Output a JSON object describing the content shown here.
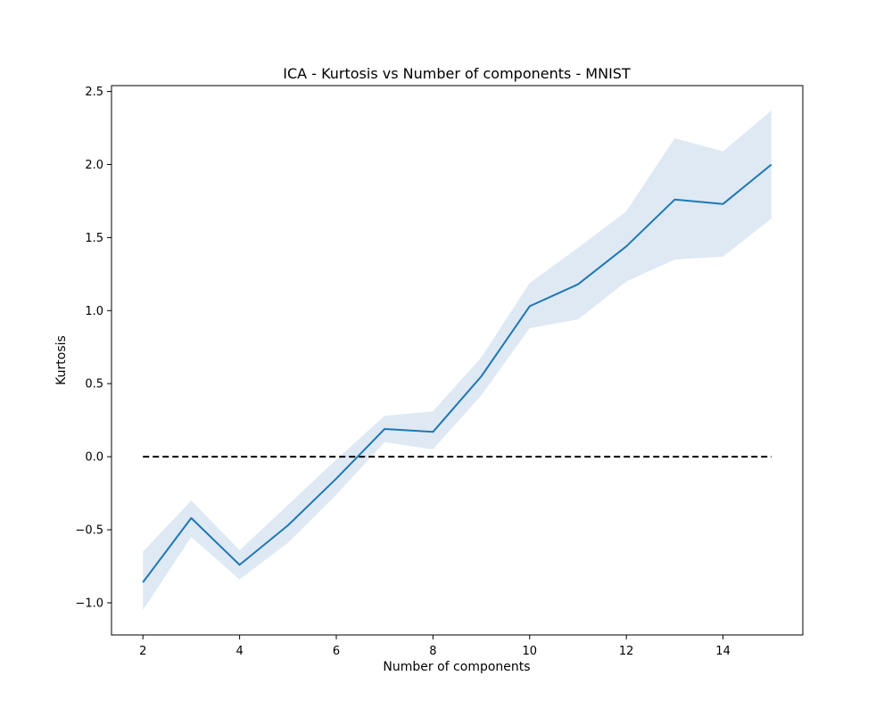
{
  "chart_data": {
    "type": "line",
    "title": "ICA - Kurtosis vs Number of components - MNIST",
    "xlabel": "Number of components",
    "ylabel": "Kurtosis",
    "xlim": [
      1.35,
      15.65
    ],
    "ylim": [
      -1.22,
      2.54
    ],
    "x_ticks": [
      2,
      4,
      6,
      8,
      10,
      12,
      14
    ],
    "y_ticks": [
      -1.0,
      -0.5,
      0.0,
      0.5,
      1.0,
      1.5,
      2.0,
      2.5
    ],
    "y_tick_labels": [
      "−1.0",
      "−0.5",
      "0.0",
      "0.5",
      "1.0",
      "1.5",
      "2.0",
      "2.5"
    ],
    "grid": false,
    "legend": "none",
    "series": [
      {
        "color": "#1f77b4",
        "x": [
          2,
          3,
          4,
          5,
          6,
          7,
          8,
          9,
          10,
          11,
          12,
          13,
          14,
          15
        ],
        "values": [
          -0.86,
          -0.42,
          -0.74,
          -0.47,
          -0.15,
          0.19,
          0.17,
          0.55,
          1.03,
          1.18,
          1.44,
          1.76,
          1.73,
          2.0
        ],
        "band_upper": [
          -0.65,
          -0.3,
          -0.64,
          -0.33,
          -0.02,
          0.28,
          0.31,
          0.68,
          1.19,
          1.43,
          1.68,
          2.18,
          2.09,
          2.37
        ],
        "band_lower": [
          -1.05,
          -0.55,
          -0.84,
          -0.59,
          -0.26,
          0.1,
          0.05,
          0.42,
          0.88,
          0.94,
          1.2,
          1.35,
          1.37,
          1.63
        ],
        "band_color": "#dee9f4"
      }
    ],
    "reference_line": {
      "y": 0.0,
      "x_from": 2,
      "x_to": 15,
      "style": "dashed",
      "color": "#000000"
    }
  }
}
